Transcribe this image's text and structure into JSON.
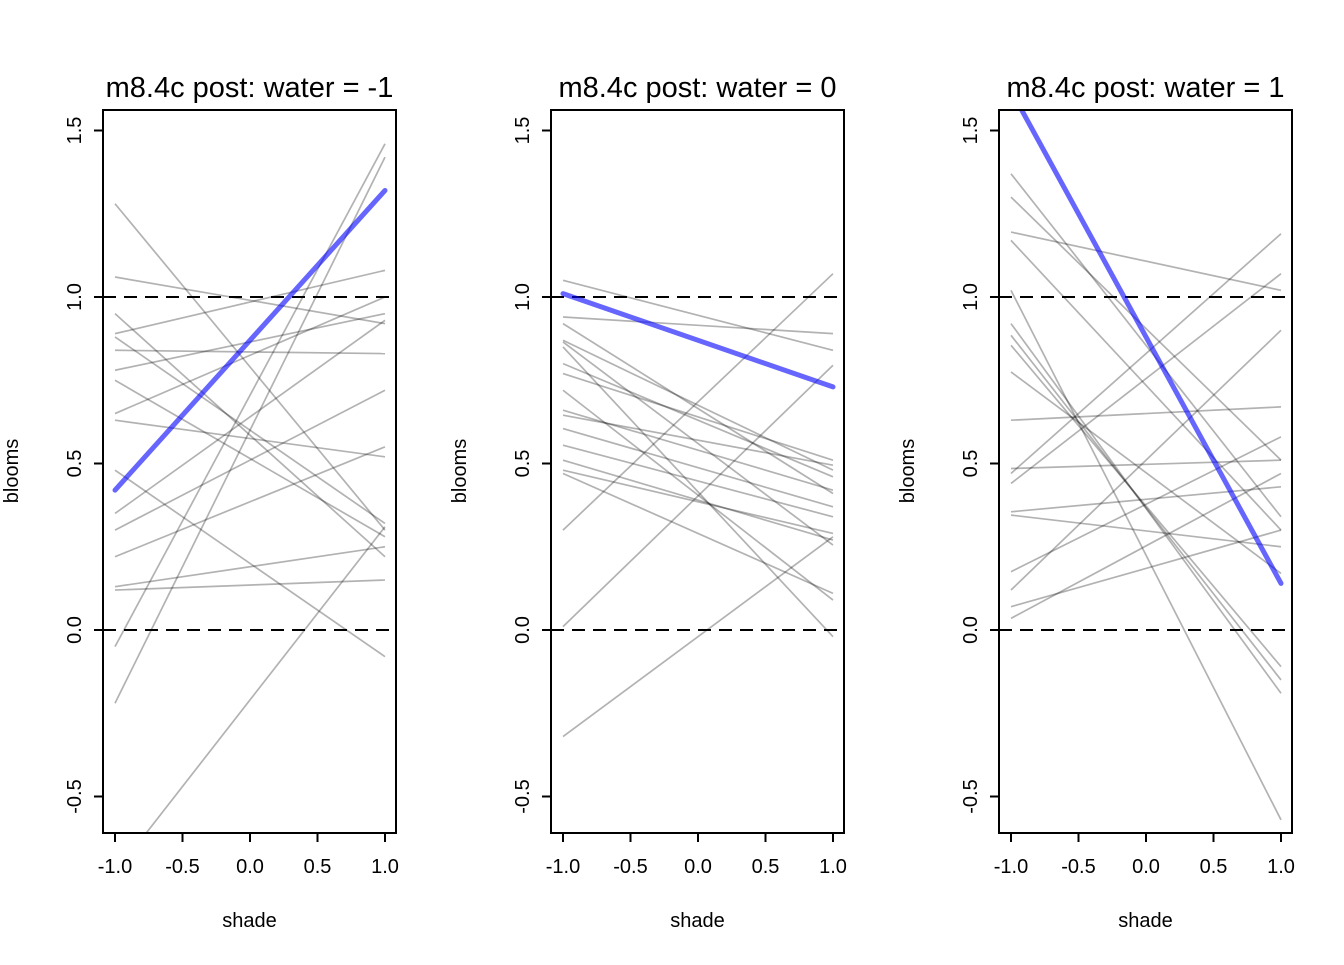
{
  "figure": {
    "background": "#ffffff",
    "gray_line_color": "#000000",
    "gray_line_opacity": 0.3,
    "blue_line_color": "#0000FF",
    "blue_line_opacity": 0.6,
    "dashed_line_color": "#000000"
  },
  "chart_data": [
    {
      "type": "line",
      "title": "m8.4c post: water = -1",
      "xlabel": "shade",
      "ylabel": "blooms",
      "x": [
        -1,
        1
      ],
      "xlim": [
        -1.09,
        1.09
      ],
      "ylim": [
        -0.61,
        1.56
      ],
      "x_tick_values": [
        -1,
        -0.5,
        0,
        0.5,
        1
      ],
      "x_tick_labels": [
        "-1.0",
        "-0.5",
        "0.0",
        "0.5",
        "1.0"
      ],
      "y_tick_values": [
        -0.5,
        0,
        0.5,
        1,
        1.5
      ],
      "y_tick_labels": [
        "-0.5",
        "0.0",
        "0.5",
        "1.0",
        "1.5"
      ],
      "dashed_hlines": [
        0,
        1
      ],
      "grid": false,
      "legend": false,
      "gray_lines": [
        [
          1.28,
          0.3
        ],
        [
          1.06,
          0.92
        ],
        [
          0.95,
          0.22
        ],
        [
          0.89,
          1.08
        ],
        [
          0.88,
          0.32
        ],
        [
          0.84,
          0.83
        ],
        [
          0.78,
          0.95
        ],
        [
          0.75,
          0.28
        ],
        [
          0.65,
          1.0
        ],
        [
          0.63,
          0.52
        ],
        [
          0.48,
          -0.08
        ],
        [
          0.35,
          0.93
        ],
        [
          0.3,
          0.72
        ],
        [
          0.22,
          0.55
        ],
        [
          0.13,
          0.25
        ],
        [
          0.12,
          0.15
        ],
        [
          -0.05,
          1.46
        ],
        [
          -0.22,
          1.42
        ],
        [
          -0.73,
          0.31
        ]
      ],
      "blue_line": [
        0.42,
        1.32
      ]
    },
    {
      "type": "line",
      "title": "m8.4c post: water = 0",
      "xlabel": "shade",
      "ylabel": "blooms",
      "x": [
        -1,
        1
      ],
      "xlim": [
        -1.09,
        1.09
      ],
      "ylim": [
        -0.61,
        1.56
      ],
      "x_tick_values": [
        -1,
        -0.5,
        0,
        0.5,
        1
      ],
      "x_tick_labels": [
        "-1.0",
        "-0.5",
        "0.0",
        "0.5",
        "1.0"
      ],
      "y_tick_values": [
        -0.5,
        0,
        0.5,
        1,
        1.5
      ],
      "y_tick_labels": [
        "-0.5",
        "0.0",
        "0.5",
        "1.0",
        "1.5"
      ],
      "dashed_hlines": [
        0,
        1
      ],
      "grid": false,
      "legend": false,
      "gray_lines": [
        [
          1.05,
          0.84
        ],
        [
          0.94,
          0.89
        ],
        [
          0.92,
          0.41
        ],
        [
          0.87,
          0.48
        ],
        [
          0.865,
          0.255
        ],
        [
          0.8,
          0.46
        ],
        [
          0.77,
          0.51
        ],
        [
          0.85,
          -0.02
        ],
        [
          0.72,
          0.09
        ],
        [
          0.66,
          0.42
        ],
        [
          0.645,
          0.495
        ],
        [
          0.605,
          0.37
        ],
        [
          0.555,
          0.34
        ],
        [
          0.51,
          0.27
        ],
        [
          0.48,
          0.29
        ],
        [
          0.47,
          0.11
        ],
        [
          0.3,
          1.07
        ],
        [
          0.01,
          0.795
        ],
        [
          -0.32,
          0.28
        ]
      ],
      "blue_line": [
        1.01,
        0.73
      ]
    },
    {
      "type": "line",
      "title": "m8.4c post: water = 1",
      "xlabel": "shade",
      "ylabel": "blooms",
      "x": [
        -1,
        1
      ],
      "xlim": [
        -1.09,
        1.09
      ],
      "ylim": [
        -0.61,
        1.56
      ],
      "x_tick_values": [
        -1,
        -0.5,
        0,
        0.5,
        1
      ],
      "x_tick_labels": [
        "-1.0",
        "-0.5",
        "0.0",
        "0.5",
        "1.0"
      ],
      "y_tick_values": [
        -0.5,
        0,
        0.5,
        1,
        1.5
      ],
      "y_tick_labels": [
        "-0.5",
        "0.0",
        "0.5",
        "1.0",
        "1.5"
      ],
      "dashed_hlines": [
        0,
        1
      ],
      "grid": false,
      "legend": false,
      "gray_lines": [
        [
          1.37,
          0.34
        ],
        [
          1.3,
          0.51
        ],
        [
          1.195,
          1.02
        ],
        [
          1.17,
          0.3
        ],
        [
          1.02,
          -0.57
        ],
        [
          0.92,
          -0.19
        ],
        [
          0.885,
          -0.15
        ],
        [
          0.855,
          -0.11
        ],
        [
          0.775,
          0.17
        ],
        [
          0.63,
          0.67
        ],
        [
          0.485,
          0.51
        ],
        [
          0.47,
          1.19
        ],
        [
          0.44,
          1.07
        ],
        [
          0.355,
          0.43
        ],
        [
          0.345,
          0.25
        ],
        [
          0.175,
          0.58
        ],
        [
          0.12,
          0.9
        ],
        [
          0.07,
          0.3
        ],
        [
          0.035,
          0.47
        ]
      ],
      "blue_line": [
        1.62,
        0.14
      ]
    }
  ]
}
